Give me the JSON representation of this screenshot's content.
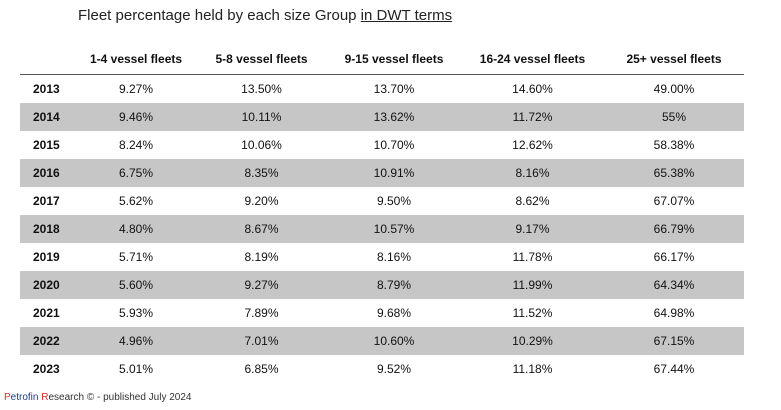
{
  "title": {
    "prefix": "Fleet percentage held by each size Group ",
    "emphasis": "in DWT terms"
  },
  "chart_data": {
    "type": "table",
    "columns": [
      "",
      "1-4 vessel fleets",
      "5-8 vessel fleets",
      "9-15 vessel fleets",
      "16-24 vessel fleets",
      "25+ vessel fleets"
    ],
    "rows": [
      [
        "2013",
        "9.27%",
        "13.50%",
        "13.70%",
        "14.60%",
        "49.00%"
      ],
      [
        "2014",
        "9.46%",
        "10.11%",
        "13.62%",
        "11.72%",
        "55%"
      ],
      [
        "2015",
        "8.24%",
        "10.06%",
        "10.70%",
        "12.62%",
        "58.38%"
      ],
      [
        "2016",
        "6.75%",
        "8.35%",
        "10.91%",
        "8.16%",
        "65.38%"
      ],
      [
        "2017",
        "5.62%",
        "9.20%",
        "9.50%",
        "8.62%",
        "67.07%"
      ],
      [
        "2018",
        "4.80%",
        "8.67%",
        "10.57%",
        "9.17%",
        "66.79%"
      ],
      [
        "2019",
        "5.71%",
        "8.19%",
        "8.16%",
        "11.78%",
        "66.17%"
      ],
      [
        "2020",
        "5.60%",
        "9.27%",
        "8.79%",
        "11.99%",
        "64.34%"
      ],
      [
        "2021",
        "5.93%",
        "7.89%",
        "9.68%",
        "11.52%",
        "64.98%"
      ],
      [
        "2022",
        "4.96%",
        "7.01%",
        "10.60%",
        "10.29%",
        "67.15%"
      ],
      [
        "2023",
        "5.01%",
        "6.85%",
        "9.52%",
        "11.18%",
        "67.44%"
      ]
    ],
    "shaded_row_color": "#c6c6c6"
  },
  "footer": {
    "p1": "P",
    "p2": "etrofin ",
    "p3": "R",
    "p4": "esearch © - published July 2024"
  }
}
